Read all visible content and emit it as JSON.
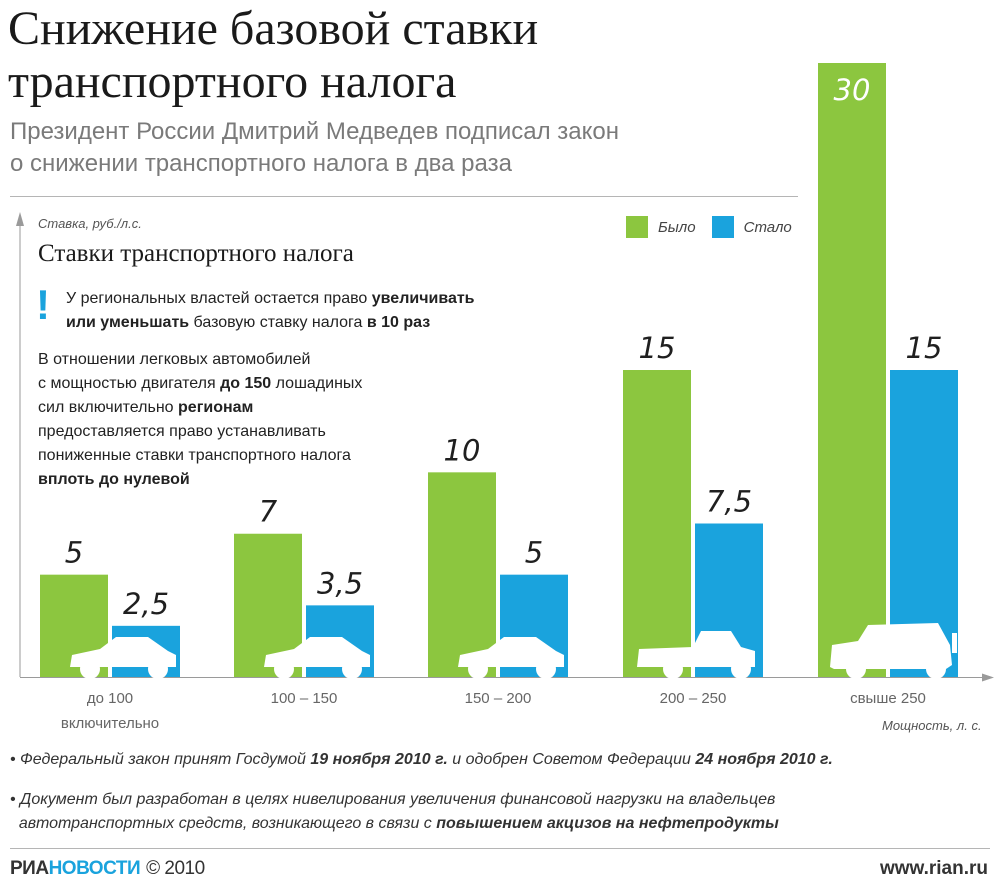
{
  "header": {
    "title_line1": "Снижение базовой ставки",
    "title_line2": "транспортного налога",
    "subtitle_line1": "Президент России Дмитрий Медведев подписал закон",
    "subtitle_line2": "о снижении транспортного налога в два раза"
  },
  "panel": {
    "title": "Ставки транспортного налога",
    "exclamation": "!",
    "note1_a": "У региональных властей остается право ",
    "note1_b": "увеличивать",
    "note1_c": "или уменьшать",
    "note1_d": " базовую ставку налога ",
    "note1_e": "в 10 раз",
    "note2_a": "В отношении легковых автомобилей",
    "note2_b": "с мощностью двигателя ",
    "note2_c": "до 150",
    "note2_d": " лошадиных",
    "note2_e": "сил включительно ",
    "note2_f": "регионам",
    "note2_g": "предоставляется право устанавливать",
    "note2_h": "пониженные ставки транспортного налога",
    "note2_i": "вплоть до нулевой"
  },
  "chart_data": {
    "type": "bar",
    "ylabel": "Ставка, руб./л.с.",
    "xlabel": "Мощность, л. с.",
    "categories": [
      "до 100 включительно",
      "100 – 150",
      "150 – 200",
      "200 – 250",
      "свыше 250"
    ],
    "category_lines": [
      [
        "до 100",
        "включительно"
      ],
      [
        "100 – 150"
      ],
      [
        "150 – 200"
      ],
      [
        "200 – 250"
      ],
      [
        "свыше 250"
      ]
    ],
    "series": [
      {
        "name": "Было",
        "values": [
          5,
          7,
          10,
          15,
          30
        ],
        "labels": [
          "5",
          "7",
          "10",
          "15",
          "30"
        ],
        "color": "#8cc63f"
      },
      {
        "name": "Стало",
        "values": [
          2.5,
          3.5,
          5,
          7.5,
          15
        ],
        "labels": [
          "2,5",
          "3,5",
          "5",
          "7,5",
          "15"
        ],
        "color": "#1aa3dd"
      }
    ],
    "ylim": [
      0,
      30
    ],
    "grid": false,
    "legend": "top-right"
  },
  "footnotes": {
    "f1_a": "Федеральный закон принят Госдумой ",
    "f1_b": "19 ноября 2010 г.",
    "f1_c": " и одобрен Советом Федерации ",
    "f1_d": "24 ноября 2010 г.",
    "f2_a": "Документ был разработан в целях нивелирования увеличения финансовой нагрузки на владельцев",
    "f2_b": "автотранспортных средств, возникающего в связи с ",
    "f2_c": "повышением акцизов на нефтепродукты"
  },
  "footer": {
    "brand_a": "РИА",
    "brand_b": "НОВОСТИ",
    "copyright": "© 2010",
    "site": "www.rian.ru"
  }
}
